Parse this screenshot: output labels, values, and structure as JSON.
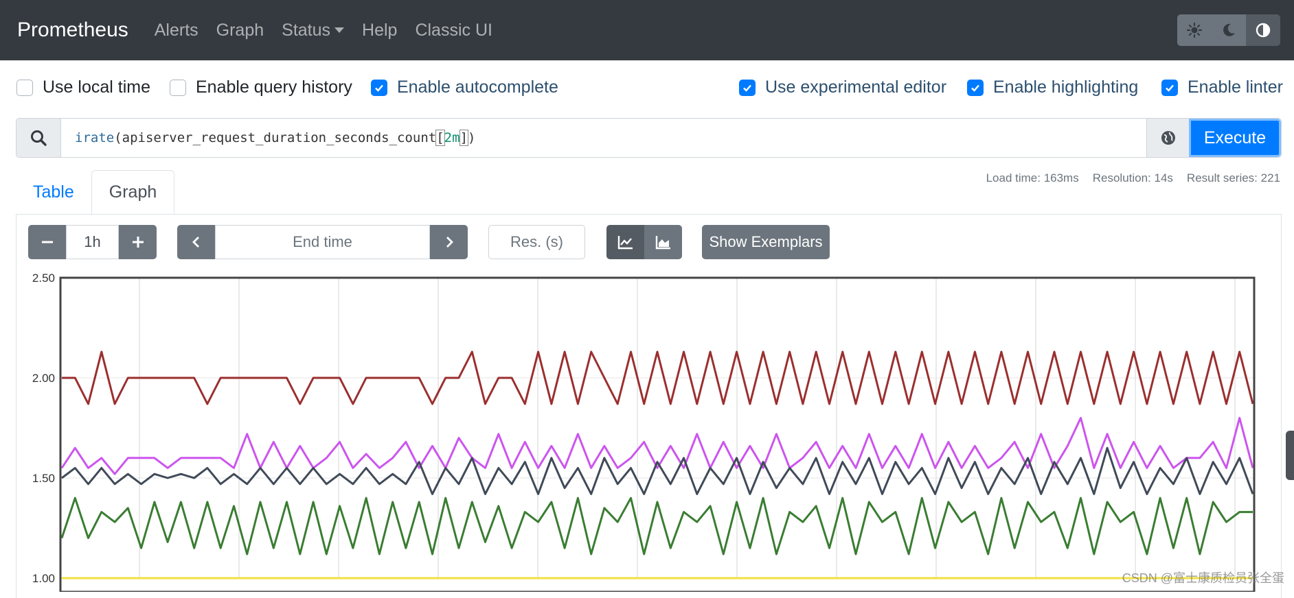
{
  "navbar": {
    "brand": "Prometheus",
    "links": [
      "Alerts",
      "Graph",
      "Status",
      "Help",
      "Classic UI"
    ],
    "theme_icons": [
      "sun-icon",
      "moon-icon",
      "contrast-icon"
    ]
  },
  "options": {
    "local_time": {
      "label": "Use local time",
      "checked": false
    },
    "query_history": {
      "label": "Enable query history",
      "checked": false
    },
    "autocomplete": {
      "label": "Enable autocomplete",
      "checked": true
    },
    "experimental_editor": {
      "label": "Use experimental editor",
      "checked": true
    },
    "highlighting": {
      "label": "Enable highlighting",
      "checked": true
    },
    "linter": {
      "label": "Enable linter",
      "checked": true
    }
  },
  "query": {
    "fn": "irate",
    "open": "(",
    "metric": "apiserver_request_duration_seconds_count",
    "lbr": "[",
    "range": "2m",
    "rbr": "]",
    "close": ")",
    "execute_label": "Execute"
  },
  "tabs": [
    "Table",
    "Graph"
  ],
  "stats": {
    "load_time": "Load time: 163ms",
    "resolution": "Resolution: 14s",
    "result_series": "Result series: 221"
  },
  "controls": {
    "range": "1h",
    "end_time_placeholder": "End time",
    "resolution_placeholder": "Res. (s)",
    "exemplars_label": "Show Exemplars"
  },
  "watermark": "CSDN @富士康质检员张全蛋",
  "chart_data": {
    "type": "line",
    "y_ticks": [
      "2.50",
      "2.00",
      "1.50",
      "1.00"
    ],
    "ylim": [
      1.0,
      2.5
    ],
    "grid": true,
    "series": [
      {
        "color": "#9b2f2f",
        "values": [
          2.0,
          2.0,
          1.87,
          2.13,
          1.87,
          2.0,
          2.0,
          2.0,
          2.0,
          2.0,
          2.0,
          1.87,
          2.0,
          2.0,
          2.0,
          2.0,
          2.0,
          2.0,
          1.87,
          2.0,
          2.0,
          2.0,
          1.87,
          2.0,
          2.0,
          2.0,
          2.0,
          2.0,
          1.87,
          2.0,
          2.0,
          2.13,
          1.87,
          2.0,
          2.0,
          1.87,
          2.13,
          1.87,
          2.13,
          1.87,
          2.13,
          2.0,
          1.87,
          2.13,
          1.87,
          2.13,
          1.87,
          2.13,
          1.87,
          2.13,
          1.87,
          2.13,
          1.87,
          2.13,
          1.87,
          2.13,
          1.87,
          2.13,
          1.87,
          2.13,
          1.87,
          2.13,
          1.87,
          2.13,
          1.87,
          2.13,
          1.87,
          2.13,
          1.87,
          2.13,
          1.87,
          2.13,
          1.87,
          2.13,
          1.87,
          2.13,
          1.87,
          2.13,
          1.87,
          2.13,
          1.87,
          2.13,
          1.87,
          2.13,
          1.87,
          2.13,
          1.87,
          2.13,
          1.87,
          2.13,
          1.87
        ]
      },
      {
        "color": "#cc55ee",
        "values": [
          1.55,
          1.65,
          1.55,
          1.6,
          1.52,
          1.6,
          1.6,
          1.6,
          1.55,
          1.6,
          1.6,
          1.6,
          1.6,
          1.55,
          1.72,
          1.55,
          1.68,
          1.55,
          1.66,
          1.55,
          1.6,
          1.68,
          1.55,
          1.62,
          1.55,
          1.6,
          1.68,
          1.55,
          1.66,
          1.55,
          1.7,
          1.6,
          1.55,
          1.72,
          1.55,
          1.68,
          1.55,
          1.66,
          1.55,
          1.72,
          1.55,
          1.66,
          1.55,
          1.6,
          1.68,
          1.55,
          1.66,
          1.55,
          1.72,
          1.55,
          1.68,
          1.55,
          1.66,
          1.55,
          1.72,
          1.55,
          1.6,
          1.68,
          1.55,
          1.66,
          1.55,
          1.72,
          1.55,
          1.66,
          1.55,
          1.72,
          1.55,
          1.68,
          1.55,
          1.66,
          1.55,
          1.6,
          1.68,
          1.55,
          1.72,
          1.55,
          1.66,
          1.8,
          1.55,
          1.72,
          1.55,
          1.68,
          1.55,
          1.66,
          1.55,
          1.6,
          1.6,
          1.68,
          1.55,
          1.8,
          1.55
        ]
      },
      {
        "color": "#404a58",
        "values": [
          1.5,
          1.55,
          1.47,
          1.55,
          1.47,
          1.52,
          1.47,
          1.52,
          1.5,
          1.52,
          1.5,
          1.55,
          1.47,
          1.52,
          1.47,
          1.55,
          1.47,
          1.55,
          1.47,
          1.55,
          1.47,
          1.52,
          1.47,
          1.55,
          1.47,
          1.52,
          1.47,
          1.58,
          1.42,
          1.55,
          1.47,
          1.6,
          1.42,
          1.55,
          1.47,
          1.58,
          1.42,
          1.6,
          1.45,
          1.55,
          1.42,
          1.6,
          1.47,
          1.55,
          1.42,
          1.58,
          1.47,
          1.6,
          1.42,
          1.55,
          1.47,
          1.6,
          1.42,
          1.58,
          1.45,
          1.55,
          1.47,
          1.6,
          1.42,
          1.58,
          1.47,
          1.6,
          1.42,
          1.58,
          1.47,
          1.55,
          1.42,
          1.6,
          1.45,
          1.58,
          1.42,
          1.55,
          1.47,
          1.6,
          1.42,
          1.58,
          1.47,
          1.6,
          1.42,
          1.65,
          1.45,
          1.58,
          1.42,
          1.55,
          1.47,
          1.6,
          1.42,
          1.58,
          1.47,
          1.6,
          1.42
        ]
      },
      {
        "color": "#3a7d32",
        "values": [
          1.2,
          1.4,
          1.2,
          1.33,
          1.28,
          1.35,
          1.15,
          1.38,
          1.18,
          1.38,
          1.15,
          1.38,
          1.15,
          1.36,
          1.12,
          1.38,
          1.15,
          1.38,
          1.12,
          1.38,
          1.12,
          1.36,
          1.15,
          1.4,
          1.12,
          1.38,
          1.15,
          1.38,
          1.12,
          1.4,
          1.15,
          1.38,
          1.18,
          1.36,
          1.15,
          1.33,
          1.28,
          1.38,
          1.15,
          1.4,
          1.12,
          1.35,
          1.28,
          1.4,
          1.12,
          1.38,
          1.15,
          1.33,
          1.28,
          1.36,
          1.12,
          1.38,
          1.15,
          1.4,
          1.12,
          1.33,
          1.28,
          1.36,
          1.15,
          1.4,
          1.12,
          1.38,
          1.28,
          1.33,
          1.12,
          1.4,
          1.15,
          1.38,
          1.28,
          1.33,
          1.12,
          1.4,
          1.15,
          1.38,
          1.28,
          1.33,
          1.15,
          1.4,
          1.12,
          1.38,
          1.28,
          1.33,
          1.12,
          1.4,
          1.15,
          1.4,
          1.12,
          1.38,
          1.28,
          1.33,
          1.33
        ]
      },
      {
        "color": "#f0e040",
        "values": [
          1.0,
          1.0,
          1.0,
          1.0,
          1.0,
          1.0,
          1.0,
          1.0,
          1.0,
          1.0,
          1.0,
          1.0,
          1.0,
          1.0,
          1.0,
          1.0,
          1.0,
          1.0,
          1.0,
          1.0,
          1.0,
          1.0,
          1.0,
          1.0,
          1.0,
          1.0,
          1.0,
          1.0,
          1.0,
          1.0,
          1.0,
          1.0,
          1.0,
          1.0,
          1.0,
          1.0,
          1.0,
          1.0,
          1.0,
          1.0,
          1.0,
          1.0,
          1.0,
          1.0,
          1.0,
          1.0,
          1.0,
          1.0,
          1.0,
          1.0,
          1.0,
          1.0,
          1.0,
          1.0,
          1.0,
          1.0,
          1.0,
          1.0,
          1.0,
          1.0,
          1.0,
          1.0,
          1.0,
          1.0,
          1.0,
          1.0,
          1.0,
          1.0,
          1.0,
          1.0,
          1.0,
          1.0,
          1.0,
          1.0,
          1.0,
          1.0,
          1.0,
          1.0,
          1.0,
          1.0,
          1.0,
          1.0,
          1.0,
          1.0,
          1.0,
          1.0,
          1.0,
          1.0,
          1.0,
          1.0,
          1.0
        ]
      }
    ]
  }
}
